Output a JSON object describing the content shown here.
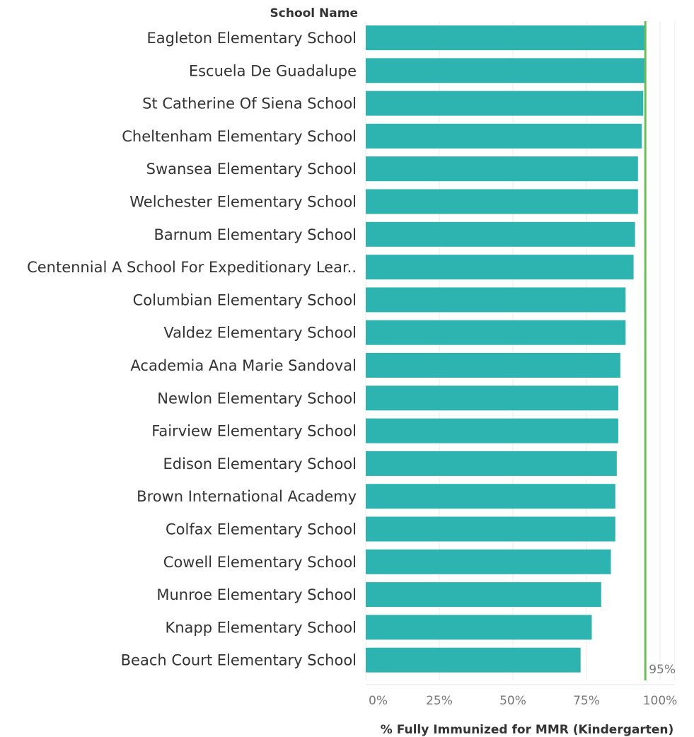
{
  "chart_data": {
    "type": "bar",
    "orientation": "horizontal",
    "row_header": "School Name",
    "xlabel": "% Fully Immunized for MMR (Kindergarten)",
    "xlim": [
      0,
      1.05
    ],
    "xticks": [
      0,
      0.25,
      0.5,
      0.75,
      1.0
    ],
    "xtick_labels": [
      "0%",
      "25%",
      "50%",
      "75%",
      "100%"
    ],
    "grid": "vertical",
    "bar_color": "#2db3b0",
    "reference_line": {
      "value": 0.95,
      "label": "95%",
      "color": "#6abf59"
    },
    "categories": [
      "Eagleton Elementary School",
      "Escuela De Guadalupe",
      "St Catherine Of Siena School",
      "Cheltenham Elementary School",
      "Swansea Elementary School",
      "Welchester Elementary School",
      "Barnum Elementary School",
      "Centennial A School For Expeditionary Lear..",
      "Columbian Elementary School",
      "Valdez Elementary School",
      "Academia Ana Marie Sandoval",
      "Newlon Elementary School",
      "Fairview Elementary School",
      "Edison Elementary School",
      "Brown International Academy",
      "Colfax Elementary School",
      "Cowell Elementary School",
      "Munroe Elementary School",
      "Knapp Elementary School",
      "Beach Court Elementary School"
    ],
    "values": [
      0.95,
      0.95,
      0.943,
      0.938,
      0.925,
      0.925,
      0.915,
      0.91,
      0.883,
      0.883,
      0.865,
      0.858,
      0.858,
      0.853,
      0.848,
      0.848,
      0.833,
      0.8,
      0.768,
      0.73
    ]
  }
}
